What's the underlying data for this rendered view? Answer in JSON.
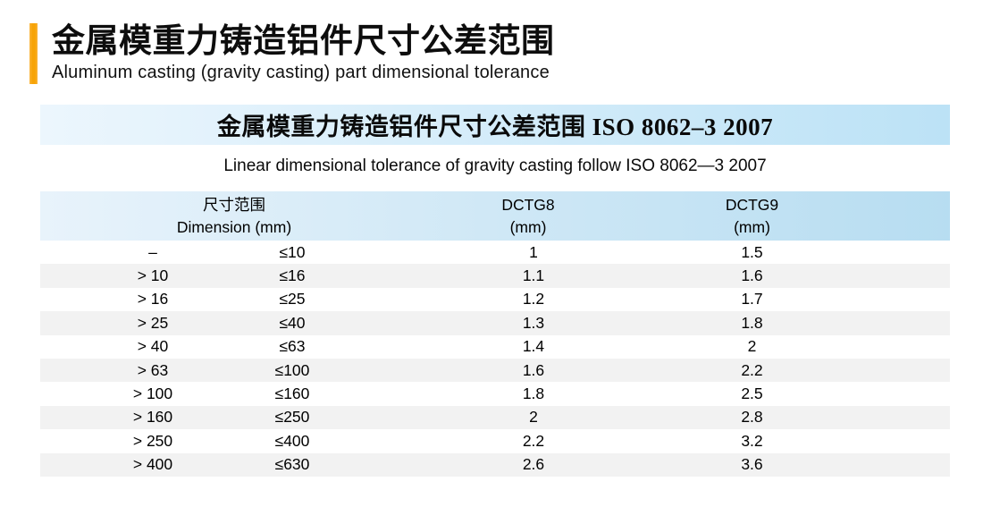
{
  "page": {
    "title_zh": "金属模重力铸造铝件尺寸公差范围",
    "title_en": "Aluminum casting (gravity casting) part dimensional tolerance"
  },
  "banner": {
    "title": "金属模重力铸造铝件尺寸公差范围 ISO 8062–3 2007",
    "subtitle": "Linear dimensional tolerance of gravity casting follow ISO 8062—3 2007"
  },
  "table": {
    "headers": {
      "dimension_zh": "尺寸范围",
      "dimension_en": "Dimension (mm)",
      "dctg8": "DCTG8",
      "dctg8_unit": "(mm)",
      "dctg9": "DCTG9",
      "dctg9_unit": "(mm)"
    },
    "rows": [
      {
        "min": "–",
        "max": "≤10",
        "dctg8": "1",
        "dctg9": "1.5"
      },
      {
        "min": "> 10",
        "max": "≤16",
        "dctg8": "1.1",
        "dctg9": "1.6"
      },
      {
        "min": "> 16",
        "max": "≤25",
        "dctg8": "1.2",
        "dctg9": "1.7"
      },
      {
        "min": "> 25",
        "max": "≤40",
        "dctg8": "1.3",
        "dctg9": "1.8"
      },
      {
        "min": "> 40",
        "max": "≤63",
        "dctg8": "1.4",
        "dctg9": "2"
      },
      {
        "min": "> 63",
        "max": "≤100",
        "dctg8": "1.6",
        "dctg9": "2.2"
      },
      {
        "min": "> 100",
        "max": "≤160",
        "dctg8": "1.8",
        "dctg9": "2.5"
      },
      {
        "min": "> 160",
        "max": "≤250",
        "dctg8": "2",
        "dctg9": "2.8"
      },
      {
        "min": "> 250",
        "max": "≤400",
        "dctg8": "2.2",
        "dctg9": "3.2"
      },
      {
        "min": "> 400",
        "max": "≤630",
        "dctg8": "2.6",
        "dctg9": "3.6"
      }
    ]
  },
  "colors": {
    "accent_orange": "#F7A408",
    "banner_from": "#ECF6FD",
    "banner_to": "#BCE2F6",
    "header_from": "#E8F3FB",
    "header_to": "#B7DDF1",
    "row_alt": "#F2F2F2"
  }
}
